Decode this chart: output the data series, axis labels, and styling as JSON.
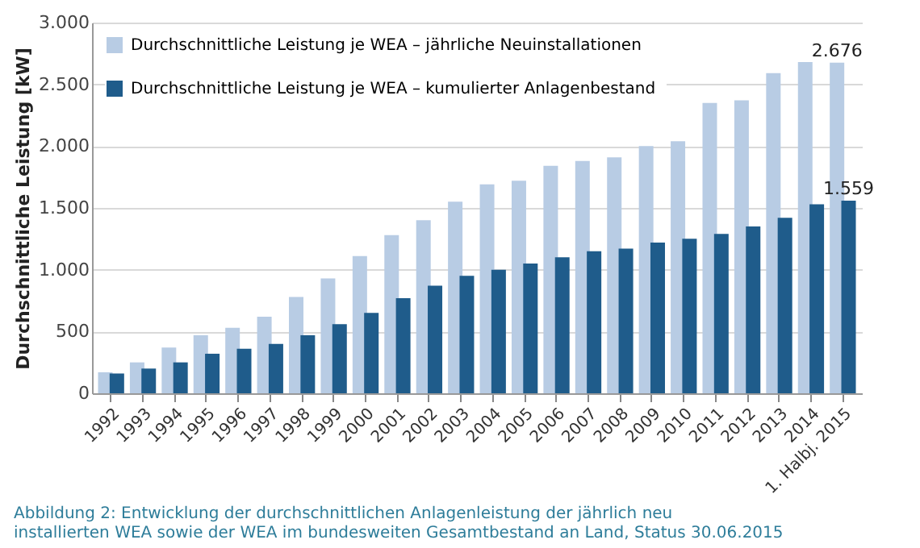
{
  "chart_data": {
    "type": "bar",
    "ylabel": "Durchschnittliche Leistung [kW]",
    "categories": [
      "1992",
      "1993",
      "1994",
      "1995",
      "1996",
      "1997",
      "1998",
      "1999",
      "2000",
      "2001",
      "2002",
      "2003",
      "2004",
      "2005",
      "2006",
      "2007",
      "2008",
      "2009",
      "2010",
      "2011",
      "2012",
      "2013",
      "2014",
      "1. Halbj. 2015"
    ],
    "series": [
      {
        "name": "Durchschnittliche Leistung  je WEA – jährliche Neuinstallationen",
        "color": "#b8cce4",
        "values": [
          170,
          250,
          370,
          470,
          530,
          620,
          780,
          930,
          1110,
          1280,
          1400,
          1550,
          1690,
          1720,
          1840,
          1880,
          1910,
          2000,
          2040,
          2350,
          2370,
          2590,
          2680,
          2676
        ],
        "value_labels": [
          null,
          null,
          null,
          null,
          null,
          null,
          null,
          null,
          null,
          null,
          null,
          null,
          null,
          null,
          null,
          null,
          null,
          null,
          null,
          null,
          null,
          null,
          null,
          "2.676"
        ]
      },
      {
        "name": "Durchschnittliche Leistung  je WEA  – kumulierter Anlagenbestand",
        "color": "#1f5c8b",
        "values": [
          160,
          200,
          250,
          320,
          360,
          400,
          470,
          560,
          650,
          770,
          870,
          950,
          1000,
          1050,
          1100,
          1150,
          1170,
          1220,
          1250,
          1290,
          1350,
          1420,
          1530,
          1559
        ],
        "value_labels": [
          null,
          null,
          null,
          null,
          null,
          null,
          null,
          null,
          null,
          null,
          null,
          null,
          null,
          null,
          null,
          null,
          null,
          null,
          null,
          null,
          null,
          null,
          null,
          "1.559"
        ]
      }
    ],
    "ylim": [
      0,
      3000
    ],
    "yticks": [
      {
        "value": 0,
        "label": "0"
      },
      {
        "value": 500,
        "label": "500"
      },
      {
        "value": 1000,
        "label": "1.000"
      },
      {
        "value": 1500,
        "label": "1.500"
      },
      {
        "value": 2000,
        "label": "2.000"
      },
      {
        "value": 2500,
        "label": "2.500"
      },
      {
        "value": 3000,
        "label": "3.000"
      }
    ],
    "grid": "y",
    "legend": "top left",
    "annotations": [
      "Abbildung 2: Entwicklung der durchschnittlichen Anlagenleistung der jährlich neu installierten WEA sowie der WEA im bundesweiten Gesamtbestand an Land, Status 30.06.2015"
    ]
  }
}
